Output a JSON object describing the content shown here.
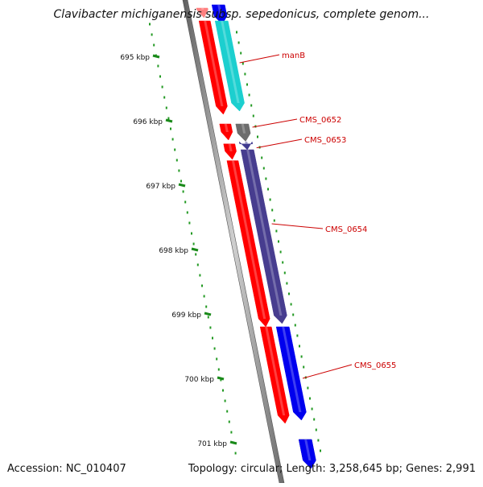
{
  "title": "Clavibacter michiganensis subsp. sepedonicus, complete genom...",
  "footer": {
    "accession": "Accession: NC_010407",
    "summary": "Topology: circular; Length: 3,258,645 bp; Genes: 2,991"
  },
  "ruler": {
    "unit": "kbp",
    "ticks": [
      "695 kbp",
      "696 kbp",
      "697 kbp",
      "698 kbp",
      "699 kbp",
      "700 kbp",
      "701 kbp"
    ]
  },
  "genes": [
    {
      "id": "upper-blue",
      "label": "",
      "color": "#0000ee",
      "strand": "forward",
      "start_kbp": 694.2,
      "end_kbp": 694.5
    },
    {
      "id": "upper-pink",
      "label": "",
      "color": "#ff8080",
      "strand": "reverse",
      "start_kbp": 694.25,
      "end_kbp": 694.4
    },
    {
      "id": "manB-red",
      "label": "",
      "color": "#ff0000",
      "strand": "reverse",
      "start_kbp": 694.45,
      "end_kbp": 695.9
    },
    {
      "id": "manB",
      "label": "manB",
      "color": "#1ccfcf",
      "strand": "forward",
      "start_kbp": 694.45,
      "end_kbp": 695.85
    },
    {
      "id": "red-small-1",
      "label": "",
      "color": "#ff0000",
      "strand": "reverse",
      "start_kbp": 696.05,
      "end_kbp": 696.3
    },
    {
      "id": "CMS_0652",
      "label": "CMS_0652",
      "color": "#6d6d6d",
      "strand": "forward",
      "start_kbp": 696.05,
      "end_kbp": 696.32
    },
    {
      "id": "red-small-2",
      "label": "",
      "color": "#ff0000",
      "strand": "reverse",
      "start_kbp": 696.36,
      "end_kbp": 696.6
    },
    {
      "id": "CMS_0653",
      "label": "CMS_0653",
      "color": "#3f3a8f",
      "strand": "forward",
      "start_kbp": 696.36,
      "end_kbp": 696.45
    },
    {
      "id": "red-long",
      "label": "",
      "color": "#ff0000",
      "strand": "reverse",
      "start_kbp": 696.62,
      "end_kbp": 699.2
    },
    {
      "id": "CMS_0654",
      "label": "CMS_0654",
      "color": "#473d8f",
      "strand": "forward",
      "start_kbp": 696.45,
      "end_kbp": 699.15
    },
    {
      "id": "red-lower",
      "label": "",
      "color": "#ff0000",
      "strand": "reverse",
      "start_kbp": 699.2,
      "end_kbp": 700.7
    },
    {
      "id": "CMS_0655",
      "label": "CMS_0655",
      "color": "#0000ee",
      "strand": "forward",
      "start_kbp": 699.2,
      "end_kbp": 700.65
    },
    {
      "id": "bottom-grey",
      "label": "",
      "color": "#6d6d6d",
      "strand": "forward",
      "start_kbp": 700.95,
      "end_kbp": 701.4
    },
    {
      "id": "bottom-blue",
      "label": "",
      "color": "#0000ee",
      "strand": "forward",
      "start_kbp": 700.95,
      "end_kbp": 701.4
    }
  ]
}
